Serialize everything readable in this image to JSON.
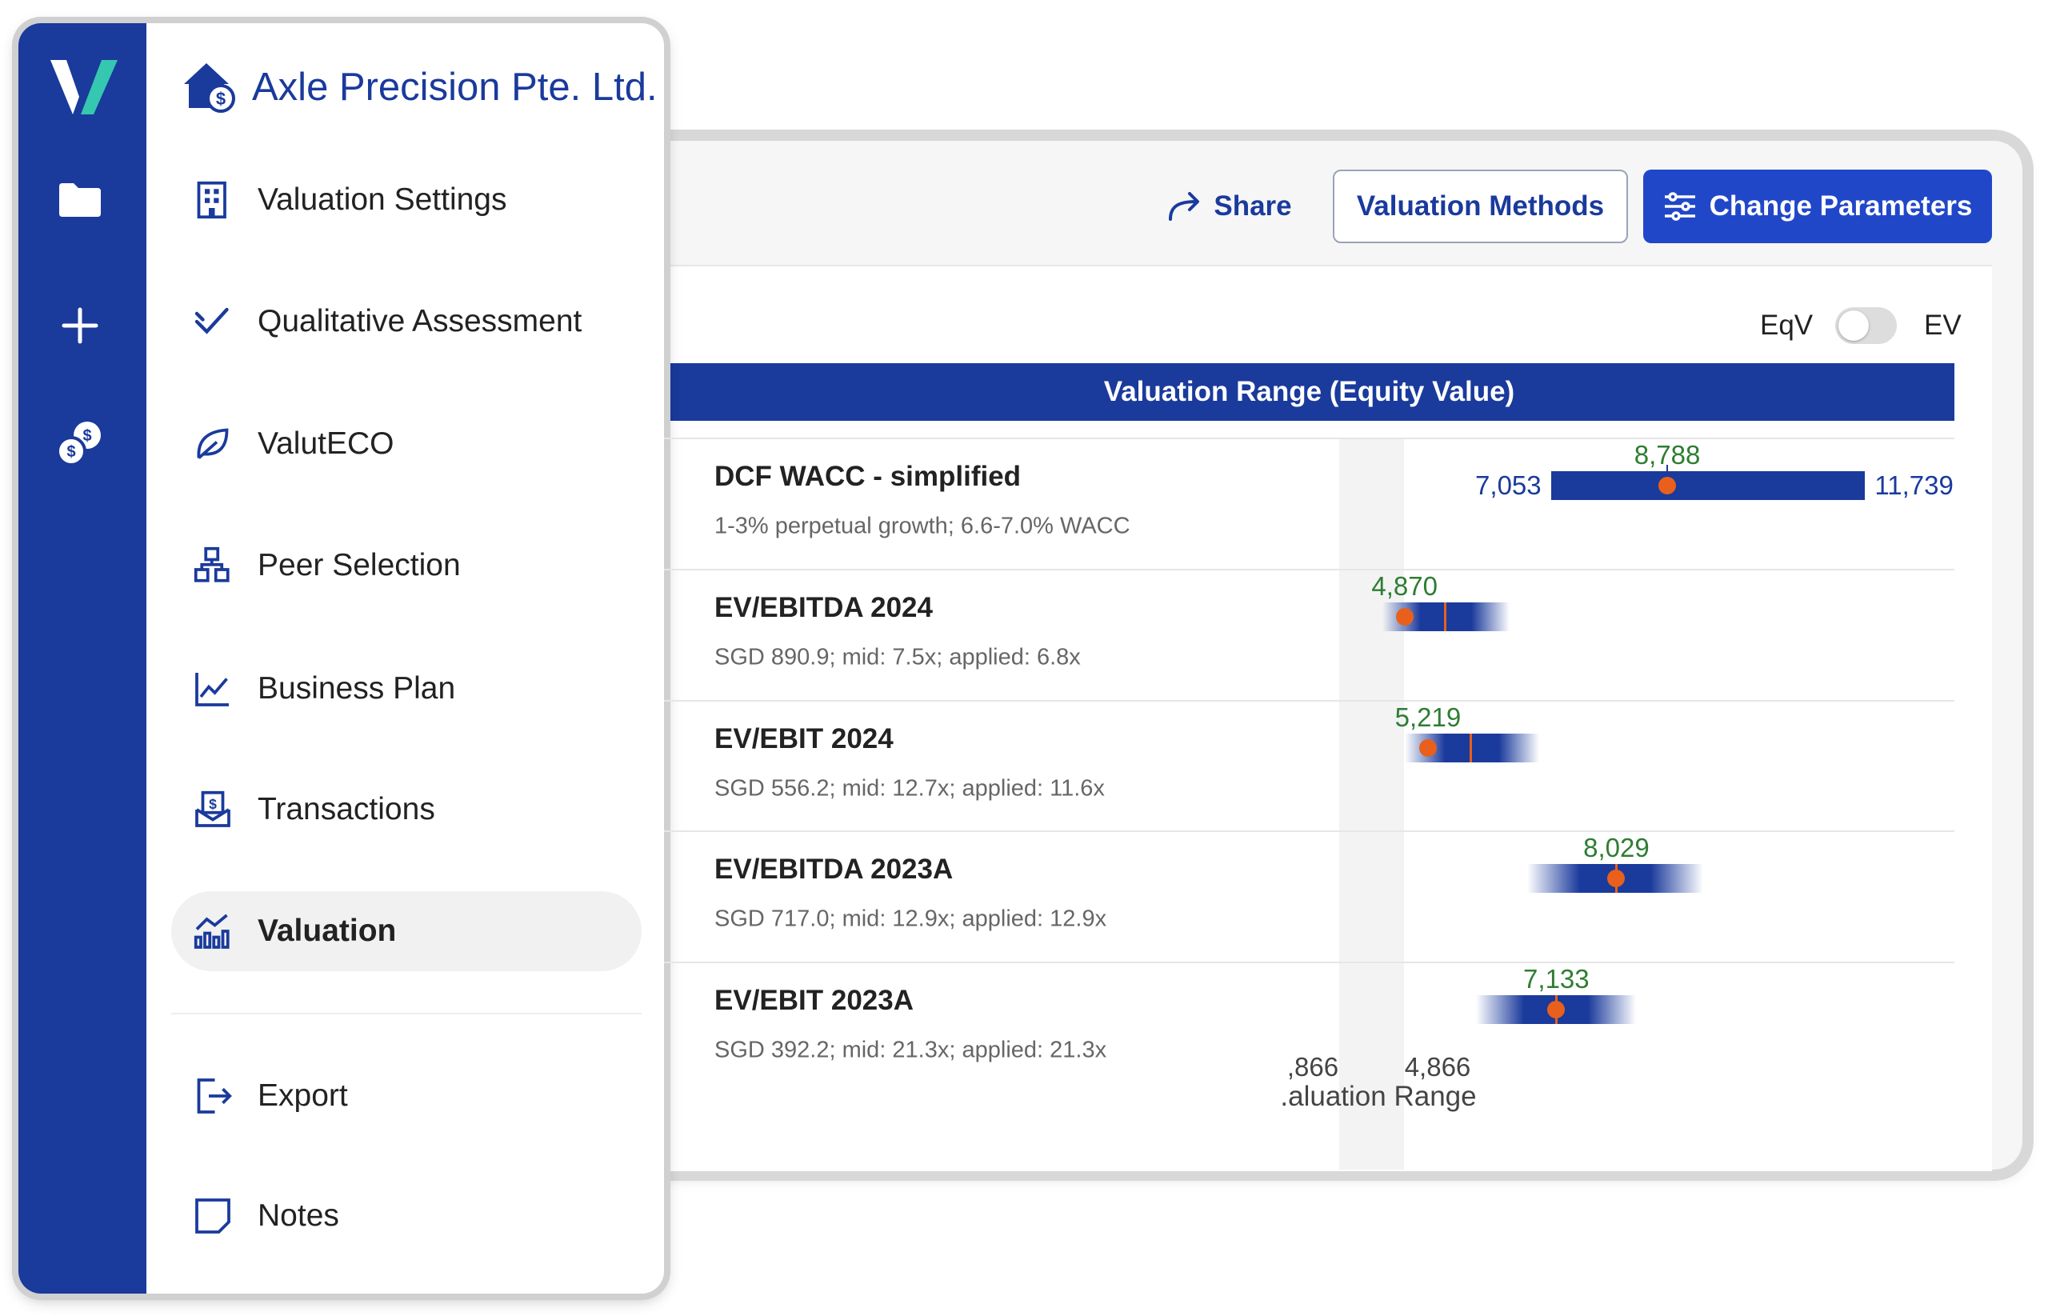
{
  "sidebar": {
    "company": "Axle Precision Pte. Ltd.",
    "menu": [
      "Valuation Settings",
      "Qualitative Assessment",
      "ValutECO",
      "Peer Selection",
      "Business Plan",
      "Transactions",
      "Valuation"
    ],
    "footer_menu": [
      "Export",
      "Notes"
    ],
    "active_index": 6
  },
  "toolbar": {
    "share": "Share",
    "methods": "Valuation Methods",
    "change": "Change Parameters"
  },
  "toggle": {
    "left": "EqV",
    "right": "EV"
  },
  "valuation": {
    "title": "Valuation Range (Equity Value)",
    "rows": [
      {
        "name": "DCF WACC - simplified",
        "detail": "1-3% perpetual growth; 6.6-7.0% WACC",
        "mid": {
          "value": 8788,
          "label": "8,788"
        },
        "low": {
          "value": 7053,
          "label": "7,053"
        },
        "high": {
          "value": 11739,
          "label": "11,739"
        }
      },
      {
        "name": "EV/EBITDA 2024",
        "detail": "SGD 890.9; mid: 7.5x; applied: 6.8x",
        "mid": {
          "value": 4870,
          "label": "4,870"
        }
      },
      {
        "name": "EV/EBIT 2024",
        "detail": "SGD 556.2; mid: 12.7x; applied: 11.6x",
        "mid": {
          "value": 5219,
          "label": "5,219"
        }
      },
      {
        "name": "EV/EBITDA 2023A",
        "detail": "SGD 717.0; mid: 12.9x; applied: 12.9x",
        "mid": {
          "value": 8029,
          "label": "8,029"
        }
      },
      {
        "name": "EV/EBIT 2023A",
        "detail": "SGD 392.2; mid: 21.3x; applied: 21.3x",
        "mid": {
          "value": 7133,
          "label": "7,133"
        }
      }
    ],
    "axis_labels": [
      ",866",
      "4,866"
    ],
    "axis_title": ".aluation Range"
  }
}
